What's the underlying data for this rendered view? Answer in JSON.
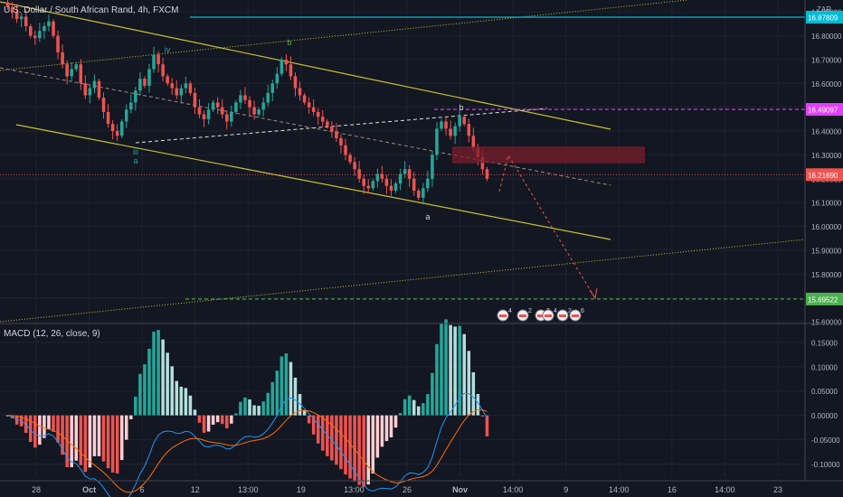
{
  "header": {
    "title": "U.S. Dollar / South African Rand, 4h, FXCM",
    "currency": "ZAR"
  },
  "macd": {
    "title": "MACD (12, 26, close, 9)"
  },
  "colors": {
    "background": "#131722",
    "up": "#26a69a",
    "down": "#ef5350",
    "channel": "#c9c12a",
    "cyan_line": "#00bcd4",
    "magenta": "#e040fb",
    "green_dash": "#4caf50",
    "zone": "#7a1f2b",
    "macd_line": "#2196f3",
    "signal_line": "#ff6d00"
  },
  "chart_data": [
    {
      "type": "candlestick",
      "symbol": "USDZAR",
      "timeframe": "4h",
      "ylim": [
        15.6,
        16.95
      ],
      "y_ticks": [
        "16.90000",
        "16.80000",
        "16.70000",
        "16.60000",
        "16.50000",
        "16.40000",
        "16.30000",
        "16.20000",
        "16.10000",
        "16.00000",
        "15.90000",
        "15.80000",
        "15.70000",
        "15.60000"
      ],
      "x_ticks": [
        "28",
        "Oct",
        "6",
        "12",
        "13:00",
        "19",
        "13:00",
        "26",
        "Nov",
        "14:00",
        "9",
        "14:00",
        "16",
        "14:00",
        "23"
      ],
      "price_labels": [
        {
          "value": "16.87809",
          "color": "#00bcd4"
        },
        {
          "value": "16.49097",
          "color": "#e040fb"
        },
        {
          "value": "16.21690",
          "color": "#ef5350"
        },
        {
          "value": "15.69522",
          "color": "#4caf50"
        }
      ],
      "horizontal_levels": [
        16.878,
        16.491,
        16.217,
        15.695
      ],
      "supply_zone": [
        16.265,
        16.335
      ],
      "wave_labels": [
        "iii",
        "a",
        "iv",
        "b",
        "b",
        "a"
      ],
      "event_markers": [
        "4",
        "2",
        "3",
        "4",
        "2",
        "6"
      ],
      "closes": [
        16.92,
        16.9,
        16.87,
        16.88,
        16.84,
        16.8,
        16.79,
        16.82,
        16.84,
        16.86,
        16.8,
        16.73,
        16.68,
        16.63,
        16.66,
        16.68,
        16.6,
        16.55,
        16.58,
        16.61,
        16.54,
        16.48,
        16.43,
        16.4,
        16.38,
        16.44,
        16.49,
        16.52,
        16.57,
        16.62,
        16.59,
        16.66,
        16.72,
        16.68,
        16.63,
        16.6,
        16.58,
        16.55,
        16.58,
        16.6,
        16.56,
        16.5,
        16.47,
        16.45,
        16.49,
        16.52,
        16.5,
        16.47,
        16.44,
        16.48,
        16.52,
        16.55,
        16.53,
        16.5,
        16.47,
        16.49,
        16.52,
        16.56,
        16.6,
        16.64,
        16.7,
        16.68,
        16.63,
        16.58,
        16.55,
        16.52,
        16.5,
        16.48,
        16.46,
        16.44,
        16.42,
        16.4,
        16.37,
        16.34,
        16.3,
        16.27,
        16.24,
        16.2,
        16.17,
        16.16,
        16.19,
        16.22,
        16.2,
        16.17,
        16.15,
        16.18,
        16.22,
        16.24,
        16.2,
        16.15,
        16.12,
        16.16,
        16.2,
        16.3,
        16.41,
        16.44,
        16.41,
        16.38,
        16.42,
        16.46,
        16.43,
        16.38,
        16.33,
        16.29,
        16.24,
        16.2
      ],
      "macd_ylim": [
        -0.125,
        0.185
      ],
      "macd_ticks": [
        "0.15000",
        "0.10000",
        "0.05000",
        "0.00000",
        "-0.05000",
        "-0.10000"
      ]
    }
  ]
}
